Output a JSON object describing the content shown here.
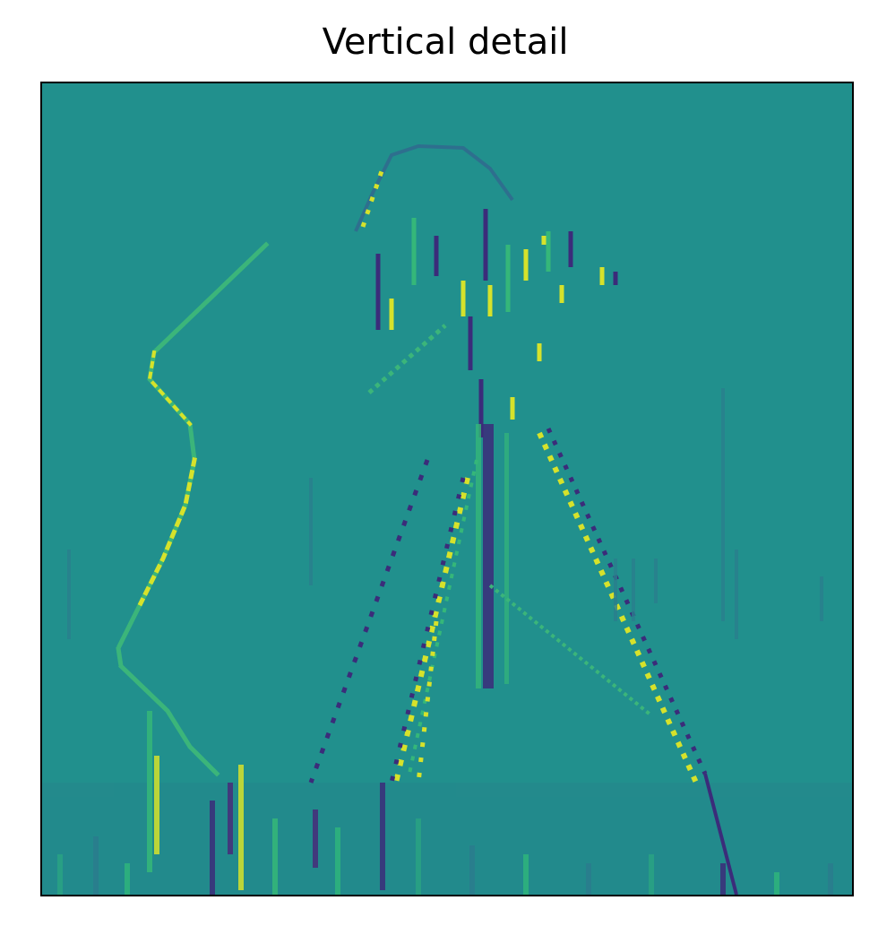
{
  "figure": {
    "title": "Vertical detail"
  },
  "colors": {
    "background": "#21908d",
    "highlight": "#d6e22b",
    "shadow": "#3b2c7a",
    "faint": "#2f8e8c",
    "bright": "#3bb57a"
  }
}
